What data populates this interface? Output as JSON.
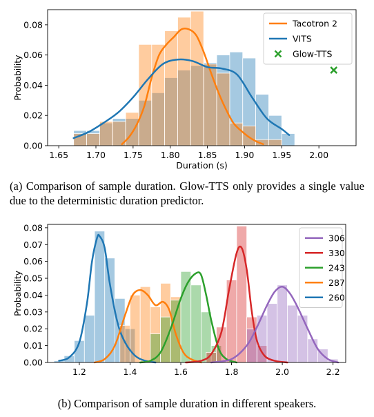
{
  "chart_data": [
    {
      "type": "bar",
      "title": "",
      "xlabel": "Duration (s)",
      "ylabel": "Probability",
      "xlim": [
        1.635,
        2.05
      ],
      "ylim": [
        0.0,
        0.09
      ],
      "xticks": [
        1.65,
        1.7,
        1.75,
        1.8,
        1.85,
        1.9,
        1.95,
        2.0
      ],
      "xtick_labels": [
        "1.65",
        "1.70",
        "1.75",
        "1.80",
        "1.85",
        "1.90",
        "1.95",
        "2.00"
      ],
      "yticks": [
        0.0,
        0.02,
        0.04,
        0.06,
        0.08
      ],
      "ytick_labels": [
        "0.00",
        "0.02",
        "0.04",
        "0.06",
        "0.08"
      ],
      "grid": false,
      "legend_position": "top-right",
      "legend": [
        "Tacotron 2",
        "VITS",
        "Glow-TTS"
      ],
      "histograms": [
        {
          "name": "VITS",
          "color": "#1f77b4",
          "bins": [
            1.67,
            1.6875,
            1.705,
            1.7225,
            1.74,
            1.7575,
            1.775,
            1.7925,
            1.81,
            1.8275,
            1.845,
            1.8625,
            1.88,
            1.8975,
            1.915,
            1.9325,
            1.95,
            1.9675
          ],
          "values": [
            0.01,
            0.01,
            0.015,
            0.018,
            0.018,
            0.03,
            0.035,
            0.045,
            0.05,
            0.053,
            0.055,
            0.06,
            0.062,
            0.058,
            0.034,
            0.02,
            0.008
          ]
        },
        {
          "name": "Tacotron 2",
          "color": "#ff7f0e",
          "bins": [
            1.67,
            1.6875,
            1.705,
            1.7225,
            1.74,
            1.7575,
            1.775,
            1.7925,
            1.81,
            1.8275,
            1.845,
            1.8625,
            1.88,
            1.8975,
            1.915,
            1.9325,
            1.95,
            1.9675
          ],
          "values": [
            0.008,
            0.008,
            0.016,
            0.016,
            0.022,
            0.067,
            0.067,
            0.076,
            0.085,
            0.089,
            0.054,
            0.048,
            0.015,
            0.013,
            0.004,
            0.004,
            0.0
          ]
        }
      ],
      "series": [
        {
          "name": "Tacotron 2",
          "type": "line",
          "color": "#ff7f0e",
          "x": [
            1.735,
            1.745,
            1.755,
            1.765,
            1.775,
            1.785,
            1.795,
            1.805,
            1.815,
            1.825,
            1.835,
            1.845,
            1.855,
            1.865,
            1.875,
            1.885,
            1.895,
            1.905,
            1.915,
            1.925
          ],
          "y": [
            0.001,
            0.006,
            0.014,
            0.026,
            0.045,
            0.06,
            0.067,
            0.072,
            0.077,
            0.077,
            0.073,
            0.062,
            0.048,
            0.035,
            0.024,
            0.015,
            0.01,
            0.006,
            0.003,
            0.001
          ]
        },
        {
          "name": "VITS",
          "type": "line",
          "color": "#1f77b4",
          "x": [
            1.67,
            1.69,
            1.71,
            1.73,
            1.75,
            1.77,
            1.79,
            1.81,
            1.83,
            1.85,
            1.87,
            1.89,
            1.91,
            1.93,
            1.95,
            1.96
          ],
          "y": [
            0.005,
            0.009,
            0.015,
            0.022,
            0.032,
            0.044,
            0.054,
            0.057,
            0.056,
            0.052,
            0.051,
            0.047,
            0.032,
            0.018,
            0.011,
            0.007
          ]
        },
        {
          "name": "Glow-TTS",
          "type": "scatter",
          "color": "#2ca02c",
          "x": [
            2.02
          ],
          "y": [
            0.05
          ]
        }
      ]
    },
    {
      "type": "bar",
      "title": "",
      "xlabel": "",
      "ylabel": "Probability",
      "xlim": [
        1.075,
        2.25
      ],
      "ylim": [
        0.0,
        0.082
      ],
      "xticks": [
        1.2,
        1.4,
        1.6,
        1.8,
        2.0,
        2.2
      ],
      "xtick_labels": [
        "1.2",
        "1.4",
        "1.6",
        "1.8",
        "2.0",
        "2.2"
      ],
      "yticks": [
        0.0,
        0.01,
        0.02,
        0.03,
        0.04,
        0.05,
        0.06,
        0.07,
        0.08
      ],
      "ytick_labels": [
        "0.00",
        "0.01",
        "0.02",
        "0.03",
        "0.04",
        "0.05",
        "0.06",
        "0.07",
        "0.08"
      ],
      "grid": false,
      "legend_position": "top-right",
      "legend": [
        "306",
        "330",
        "243",
        "287",
        "260"
      ],
      "histograms": [
        {
          "name": "260",
          "color": "#1f77b4",
          "bins": [
            1.1,
            1.14,
            1.18,
            1.22,
            1.26,
            1.3,
            1.34,
            1.38,
            1.42
          ],
          "values": [
            0.001,
            0.004,
            0.013,
            0.028,
            0.078,
            0.062,
            0.038,
            0.02
          ]
        },
        {
          "name": "287",
          "color": "#ff7f0e",
          "bins": [
            1.36,
            1.4,
            1.44,
            1.48,
            1.52,
            1.56,
            1.6
          ],
          "values": [
            0.022,
            0.04,
            0.045,
            0.033,
            0.047,
            0.039
          ]
        },
        {
          "name": "243",
          "color": "#2ca02c",
          "bins": [
            1.48,
            1.52,
            1.56,
            1.6,
            1.64,
            1.68,
            1.72,
            1.76
          ],
          "values": [
            0.017,
            0.027,
            0.037,
            0.054,
            0.046,
            0.03,
            0.01
          ]
        },
        {
          "name": "330",
          "color": "#d62728",
          "bins": [
            1.7,
            1.74,
            1.78,
            1.82,
            1.86,
            1.9,
            1.94
          ],
          "values": [
            0.006,
            0.021,
            0.049,
            0.081,
            0.027,
            0.01
          ]
        },
        {
          "name": "306",
          "color": "#9467bd",
          "bins": [
            1.86,
            1.9,
            1.94,
            1.98,
            2.02,
            2.06,
            2.1,
            2.14,
            2.18,
            2.22
          ],
          "values": [
            0.02,
            0.028,
            0.035,
            0.046,
            0.034,
            0.028,
            0.014,
            0.008,
            0.002
          ]
        }
      ],
      "series": [
        {
          "name": "260",
          "color": "#1f77b4",
          "x": [
            1.12,
            1.16,
            1.2,
            1.23,
            1.25,
            1.27,
            1.28,
            1.3,
            1.32,
            1.35,
            1.38,
            1.42,
            1.46,
            1.5
          ],
          "y": [
            0.001,
            0.003,
            0.012,
            0.035,
            0.06,
            0.074,
            0.075,
            0.068,
            0.047,
            0.024,
            0.012,
            0.004,
            0.001,
            0.0
          ]
        },
        {
          "name": "287",
          "color": "#ff7f0e",
          "x": [
            1.26,
            1.3,
            1.34,
            1.38,
            1.41,
            1.44,
            1.47,
            1.5,
            1.53,
            1.555,
            1.58,
            1.61,
            1.64,
            1.68
          ],
          "y": [
            0.0,
            0.002,
            0.01,
            0.028,
            0.04,
            0.043,
            0.04,
            0.034,
            0.036,
            0.031,
            0.017,
            0.006,
            0.002,
            0.0
          ]
        },
        {
          "name": "243",
          "color": "#2ca02c",
          "x": [
            1.44,
            1.48,
            1.52,
            1.56,
            1.6,
            1.63,
            1.66,
            1.68,
            1.7,
            1.72,
            1.75,
            1.78,
            1.82
          ],
          "y": [
            0.0,
            0.001,
            0.006,
            0.02,
            0.038,
            0.048,
            0.053,
            0.052,
            0.04,
            0.025,
            0.008,
            0.002,
            0.0
          ]
        },
        {
          "name": "330",
          "color": "#d62728",
          "x": [
            1.62,
            1.68,
            1.72,
            1.76,
            1.79,
            1.82,
            1.84,
            1.86,
            1.88,
            1.9,
            1.93,
            1.97,
            2.02
          ],
          "y": [
            0.0,
            0.001,
            0.005,
            0.018,
            0.043,
            0.065,
            0.068,
            0.055,
            0.03,
            0.013,
            0.004,
            0.001,
            0.0
          ]
        },
        {
          "name": "306",
          "color": "#9467bd",
          "x": [
            1.72,
            1.8,
            1.86,
            1.9,
            1.94,
            1.97,
            2.0,
            2.03,
            2.06,
            2.1,
            2.14,
            2.18,
            2.22
          ],
          "y": [
            0.0,
            0.002,
            0.01,
            0.021,
            0.034,
            0.042,
            0.045,
            0.041,
            0.033,
            0.02,
            0.008,
            0.002,
            0.0
          ]
        }
      ]
    }
  ],
  "captions": {
    "a": "(a) Comparison of sample duration.  Glow-TTS only provides a single value due to the deterministic duration predictor.",
    "b": "(b) Comparison of sample duration in different speakers."
  }
}
